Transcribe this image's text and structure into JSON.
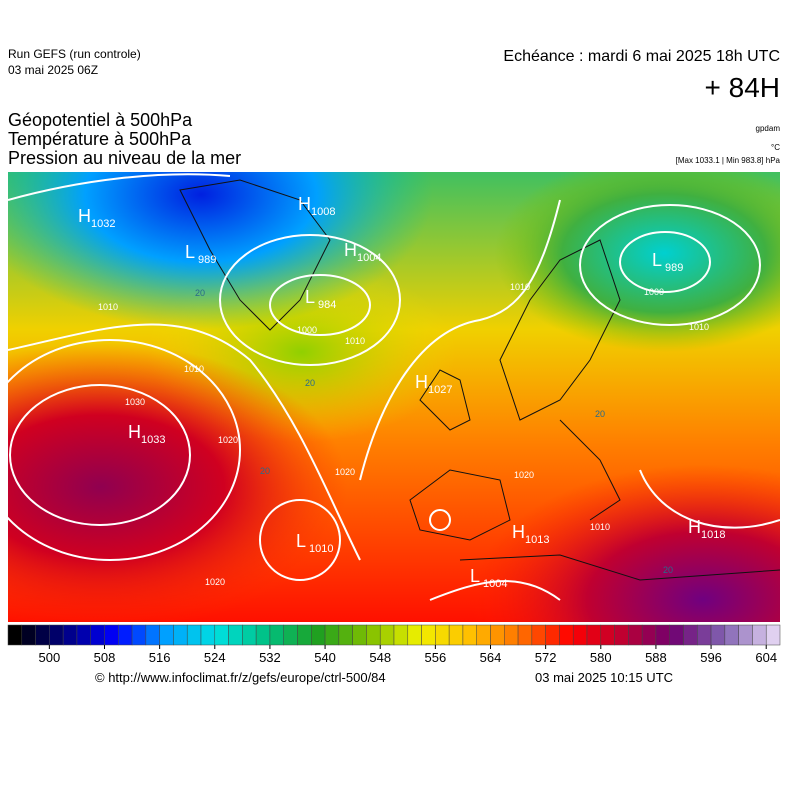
{
  "header": {
    "run": "Run GEFS (run controle)",
    "run_date": "03 mai 2025 06Z",
    "echeance": "Echéance : mardi 6 mai 2025 18h UTC",
    "lead": "+ 84H"
  },
  "titles": [
    "Géopotentiel à 500hPa",
    "Température à 500hPa",
    "Pression au niveau de la mer"
  ],
  "units": {
    "geopotential": "gpdam",
    "temperature": "°C",
    "pressure": "[Max 1033.1 | Min 983.8] hPa"
  },
  "centers": [
    {
      "type": "H",
      "value": "1032"
    },
    {
      "type": "L",
      "value": "989"
    },
    {
      "type": "H",
      "value": "1008"
    },
    {
      "type": "H",
      "value": "1004"
    },
    {
      "type": "L",
      "value": "984"
    },
    {
      "type": "L",
      "value": "989"
    },
    {
      "type": "H",
      "value": "1027"
    },
    {
      "type": "H",
      "value": "1033"
    },
    {
      "type": "L",
      "value": "1010"
    },
    {
      "type": "H",
      "value": "1013"
    },
    {
      "type": "L",
      "value": "1004"
    },
    {
      "type": "H",
      "value": "1018"
    }
  ],
  "isobar_labels": [
    "1010",
    "1010",
    "1000",
    "1010",
    "1030",
    "1020",
    "1020",
    "1020",
    "1020",
    "1000",
    "1010",
    "1010",
    "1010"
  ],
  "isotherm_labels": [
    "20",
    "20",
    "20",
    "20",
    "20"
  ],
  "colorbar": {
    "ticks": [
      500,
      508,
      516,
      524,
      532,
      540,
      548,
      556,
      564,
      572,
      580,
      588,
      596,
      604
    ],
    "range": [
      494,
      606
    ],
    "step": 2,
    "colors": [
      "#000000",
      "#000080",
      "#0000ff",
      "#00a0ff",
      "#00e0e0",
      "#00c080",
      "#20a020",
      "#80c000",
      "#f0f000",
      "#ffc000",
      "#ff7000",
      "#ff0000",
      "#c00030",
      "#700070",
      "#8060b0",
      "#e0d0f0"
    ]
  },
  "footer": {
    "source": "© http://www.infoclimat.fr/z/gefs/europe/ctrl-500/84",
    "issued": "03 mai 2025 10:15 UTC"
  }
}
